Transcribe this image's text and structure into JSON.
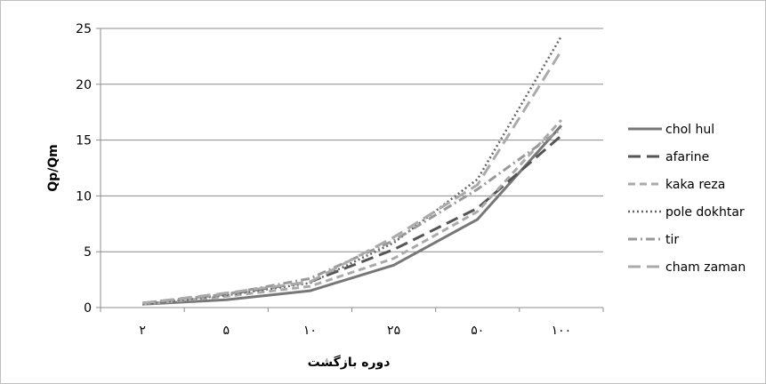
{
  "chart_data": {
    "type": "line",
    "title": "",
    "xlabel": "دوره بازگشت",
    "ylabel": "Qp/Qm",
    "categories": [
      "۲",
      "۵",
      "۱۰",
      "۲۵",
      "۵۰",
      "۱۰۰"
    ],
    "ylim": [
      0,
      25
    ],
    "yticks": [
      0,
      5,
      10,
      15,
      20,
      25
    ],
    "grid": true,
    "legend_position": "right",
    "series": [
      {
        "name": "chol hul",
        "values": [
          0.3,
          0.7,
          1.5,
          3.8,
          7.9,
          16.3
        ],
        "color": "#777777",
        "dash": "solid"
      },
      {
        "name": "afarine",
        "values": [
          0.4,
          1.2,
          2.3,
          5.2,
          8.9,
          15.4
        ],
        "color": "#555555",
        "dash": "long-dash"
      },
      {
        "name": "kaka reza",
        "values": [
          0.3,
          1.0,
          1.9,
          4.4,
          8.6,
          16.8
        ],
        "color": "#aaaaaa",
        "dash": "dash"
      },
      {
        "name": "pole dokhtar",
        "values": [
          0.3,
          1.1,
          2.2,
          5.8,
          11.5,
          24.3
        ],
        "color": "#666666",
        "dash": "dot"
      },
      {
        "name": "tir",
        "values": [
          0.4,
          1.2,
          2.6,
          6.0,
          10.6,
          16.0
        ],
        "color": "#999999",
        "dash": "dash-dot"
      },
      {
        "name": "cham zaman",
        "values": [
          0.4,
          1.3,
          2.3,
          6.3,
          11.0,
          23.0
        ],
        "color": "#aaaaaa",
        "dash": "long-dash"
      }
    ]
  }
}
